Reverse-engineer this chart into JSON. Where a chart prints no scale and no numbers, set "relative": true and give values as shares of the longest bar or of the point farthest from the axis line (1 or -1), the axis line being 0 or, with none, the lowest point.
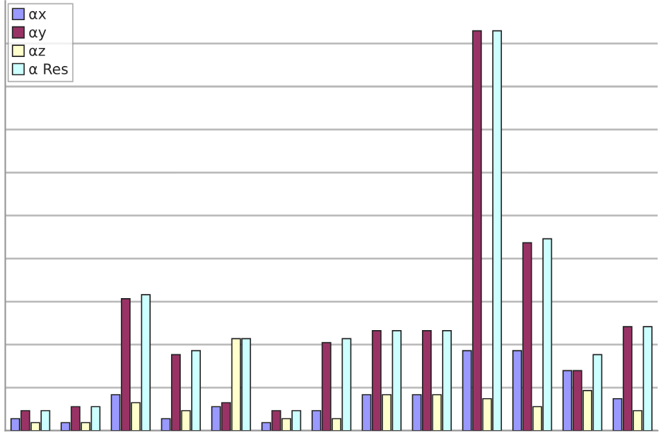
{
  "chart_data": {
    "type": "bar",
    "relative": true,
    "grid": "y",
    "legend": "top left",
    "categories": [
      null,
      null,
      null,
      null,
      null,
      null,
      null,
      null,
      null,
      null,
      null,
      null,
      null
    ],
    "series": [
      {
        "name": "αx",
        "color": "#9999ff",
        "values": [
          0.03,
          0.02,
          0.09,
          0.03,
          0.06,
          0.02,
          0.05,
          0.09,
          0.09,
          0.2,
          0.2,
          0.15,
          0.08
        ]
      },
      {
        "name": "αy",
        "color": "#993366",
        "values": [
          0.05,
          0.06,
          0.33,
          0.19,
          0.07,
          0.05,
          0.22,
          0.25,
          0.25,
          1.0,
          0.47,
          0.15,
          0.26
        ]
      },
      {
        "name": "αz",
        "color": "#ffffcc",
        "values": [
          0.02,
          0.02,
          0.07,
          0.05,
          0.23,
          0.03,
          0.03,
          0.09,
          0.09,
          0.08,
          0.06,
          0.1,
          0.05
        ]
      },
      {
        "name": "α Res",
        "color": "#ccffff",
        "values": [
          0.05,
          0.06,
          0.34,
          0.2,
          0.23,
          0.05,
          0.23,
          0.25,
          0.25,
          1.0,
          0.48,
          0.19,
          0.26
        ]
      }
    ]
  }
}
